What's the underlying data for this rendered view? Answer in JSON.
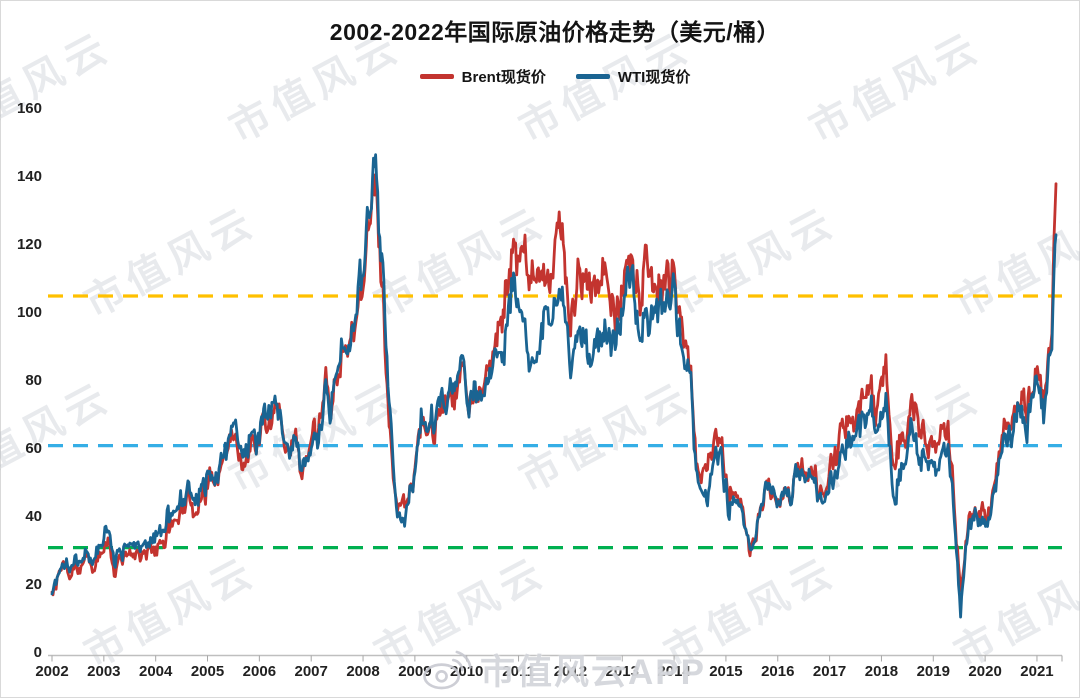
{
  "chart_data": {
    "type": "line",
    "title": "2002-2022年国际原油价格走势（美元/桶）",
    "unit": "美元/桶",
    "x_start_year": 2002,
    "x_step": "monthly",
    "x_ticks": [
      "2002",
      "2003",
      "2004",
      "2005",
      "2006",
      "2007",
      "2008",
      "2009",
      "2010",
      "2011",
      "2012",
      "2013",
      "2014",
      "2015",
      "2016",
      "2017",
      "2018",
      "2019",
      "2020",
      "2021"
    ],
    "y_ticks": [
      0,
      20,
      40,
      60,
      80,
      100,
      120,
      140,
      160
    ],
    "ylim": [
      0,
      160
    ],
    "grid": false,
    "legend_position": "top",
    "ref_lines": [
      {
        "value": 105,
        "color": "#FFC000"
      },
      {
        "value": 61,
        "color": "#35AEE6"
      },
      {
        "value": 31,
        "color": "#00B050"
      }
    ],
    "series": [
      {
        "name": "Brent现货价",
        "color": "#C3342F",
        "values": [
          19.5,
          20.3,
          23.7,
          25.7,
          25.4,
          24.1,
          25.8,
          26.6,
          28.4,
          27.5,
          24.3,
          28.3,
          31.3,
          32.7,
          30.5,
          24.9,
          25.8,
          27.6,
          28.4,
          29.8,
          27.1,
          29.6,
          28.7,
          29.8,
          31.3,
          30.9,
          33.8,
          33.4,
          37.6,
          35.3,
          38.3,
          42.7,
          43.2,
          49.8,
          43.1,
          39.6,
          44.5,
          45.5,
          53.1,
          52.0,
          48.6,
          54.4,
          57.5,
          64.1,
          62.9,
          58.5,
          55.2,
          56.9,
          63.1,
          60.2,
          62.1,
          70.4,
          69.8,
          68.6,
          73.7,
          73.2,
          61.7,
          57.8,
          58.9,
          62.3,
          53.7,
          57.6,
          62.1,
          67.5,
          67.2,
          71.1,
          77.0,
          70.8,
          77.2,
          82.3,
          92.4,
          91.0,
          92.0,
          95.0,
          103.7,
          109.1,
          122.8,
          132.3,
          138.0,
          113.2,
          98.1,
          71.9,
          52.5,
          40.4,
          43.4,
          43.3,
          46.5,
          50.2,
          57.3,
          68.6,
          64.4,
          72.5,
          67.7,
          72.8,
          76.7,
          74.5,
          76.2,
          73.7,
          78.8,
          84.8,
          75.9,
          74.8,
          75.6,
          77.0,
          77.8,
          82.7,
          85.3,
          91.4,
          96.5,
          103.7,
          114.6,
          123.3,
          114.5,
          114.0,
          116.8,
          110.2,
          112.8,
          109.6,
          110.8,
          107.9,
          110.7,
          119.3,
          125.4,
          119.8,
          110.3,
          95.2,
          102.6,
          113.4,
          112.9,
          111.7,
          109.1,
          109.5,
          112.3,
          116.1,
          108.5,
          102.3,
          102.6,
          102.9,
          107.9,
          111.3,
          111.6,
          109.1,
          107.8,
          110.8,
          108.1,
          108.9,
          107.5,
          107.8,
          109.5,
          111.8,
          106.8,
          101.6,
          97.1,
          87.4,
          79.0,
          62.3,
          47.8,
          58.1,
          55.9,
          59.5,
          64.1,
          61.5,
          56.6,
          46.5,
          47.6,
          48.4,
          44.3,
          38.0,
          30.7,
          32.2,
          38.2,
          41.6,
          46.7,
          48.3,
          44.9,
          45.8,
          46.6,
          49.5,
          44.7,
          53.3,
          54.6,
          54.9,
          51.6,
          52.3,
          50.3,
          46.4,
          48.5,
          51.7,
          56.2,
          57.5,
          62.7,
          64.4,
          69.1,
          65.3,
          66.0,
          72.1,
          76.9,
          74.4,
          74.2,
          72.5,
          78.9,
          83.0,
          64.8,
          54.0,
          59.4,
          64.0,
          66.1,
          71.2,
          71.3,
          64.2,
          63.9,
          59.0,
          62.8,
          59.7,
          63.2,
          67.3,
          63.7,
          55.7,
          32.0,
          18.5,
          29.4,
          40.3,
          43.2,
          44.7,
          40.9,
          40.2,
          42.7,
          50.2,
          54.8,
          62.3,
          65.4,
          64.8,
          68.5,
          73.2,
          75.2,
          70.8,
          74.5,
          83.5,
          81.1,
          74.2,
          86.5,
          97.1,
          138.0
        ]
      },
      {
        "name": "WTI现货价",
        "color": "#1A6492",
        "values": [
          19.7,
          20.7,
          24.4,
          26.3,
          27.0,
          25.5,
          26.9,
          28.4,
          29.7,
          28.9,
          26.3,
          29.4,
          33.0,
          35.8,
          33.5,
          28.2,
          28.1,
          30.7,
          30.8,
          31.6,
          28.3,
          30.3,
          31.1,
          32.2,
          34.3,
          34.7,
          36.8,
          36.7,
          40.3,
          38.0,
          40.7,
          44.9,
          46.0,
          53.3,
          48.5,
          43.3,
          46.8,
          48.0,
          54.3,
          53.0,
          49.8,
          56.3,
          58.7,
          65.0,
          65.5,
          62.4,
          58.3,
          59.4,
          65.5,
          61.6,
          62.9,
          69.7,
          70.9,
          71.0,
          74.4,
          73.1,
          63.9,
          58.9,
          59.4,
          62.0,
          54.5,
          59.3,
          60.6,
          64.0,
          63.5,
          67.5,
          74.2,
          72.4,
          79.9,
          86.2,
          94.6,
          91.7,
          93.0,
          95.4,
          105.6,
          112.6,
          125.4,
          133.9,
          144.0,
          116.6,
          103.9,
          76.7,
          57.4,
          41.0,
          41.7,
          39.2,
          48.0,
          49.8,
          59.2,
          69.7,
          64.1,
          71.1,
          69.5,
          75.8,
          78.1,
          74.3,
          78.2,
          76.4,
          81.3,
          84.5,
          73.7,
          75.4,
          76.4,
          76.6,
          75.3,
          81.9,
          84.3,
          89.2,
          89.4,
          89.7,
          102.9,
          110.0,
          101.3,
          96.3,
          97.3,
          86.3,
          85.6,
          86.4,
          97.2,
          98.6,
          100.3,
          102.3,
          106.2,
          103.3,
          94.7,
          82.4,
          87.9,
          94.1,
          94.5,
          89.5,
          86.7,
          88.2,
          94.8,
          95.3,
          93.0,
          92.0,
          94.8,
          95.8,
          104.7,
          106.6,
          106.3,
          100.5,
          93.9,
          97.6,
          94.6,
          100.8,
          100.8,
          102.1,
          102.2,
          105.8,
          103.6,
          96.5,
          93.2,
          84.4,
          75.8,
          59.3,
          47.2,
          50.6,
          47.8,
          54.4,
          59.3,
          59.8,
          50.9,
          42.9,
          45.5,
          46.2,
          42.4,
          37.2,
          31.7,
          30.3,
          37.6,
          40.8,
          46.7,
          48.8,
          44.7,
          44.7,
          45.2,
          49.8,
          45.7,
          52.0,
          52.5,
          53.5,
          49.3,
          51.1,
          48.5,
          45.2,
          46.6,
          48.0,
          49.8,
          51.6,
          56.6,
          57.9,
          63.7,
          62.2,
          62.7,
          66.3,
          70.0,
          67.9,
          71.0,
          68.1,
          70.2,
          72.0,
          57.0,
          46.5,
          51.4,
          55.0,
          58.2,
          63.9,
          60.8,
          54.7,
          57.4,
          54.8,
          57.0,
          54.0,
          57.0,
          59.8,
          57.5,
          50.5,
          29.9,
          11.5,
          28.6,
          38.3,
          40.8,
          42.4,
          39.6,
          39.4,
          41.0,
          47.0,
          52.0,
          59.0,
          62.3,
          61.7,
          65.2,
          71.4,
          72.4,
          67.7,
          71.6,
          81.5,
          79.2,
          71.7,
          83.2,
          91.6,
          123.0
        ]
      }
    ]
  },
  "watermark": {
    "tile_text": "市值风云",
    "app_label": "市值风云APP",
    "tile_color": "#B4B8C4",
    "app_color": "#CBCDD4",
    "icon": "weibo-icon"
  }
}
